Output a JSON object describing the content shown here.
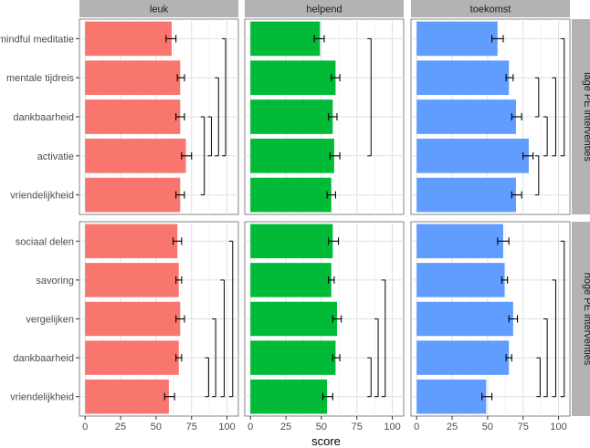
{
  "chart_data": {
    "type": "bar",
    "orientation": "horizontal",
    "xlabel": "score",
    "xlim": [
      -4,
      108
    ],
    "xticks": [
      0,
      25,
      50,
      75,
      100
    ],
    "grid": true,
    "columns": [
      "leuk",
      "helpend",
      "toekomst"
    ],
    "colors": {
      "leuk": "#f8766d",
      "helpend": "#00ba38",
      "toekomst": "#619cff"
    },
    "rows": [
      {
        "label": "lage PE interventies",
        "categories": [
          "mindful meditatie",
          "mentale tijdreis",
          "dankbaarheid",
          "activatie",
          "vriendelijkheid"
        ],
        "panels": [
          {
            "name": "leuk",
            "values": [
              61,
              67,
              67,
              71,
              67
            ],
            "err_low": [
              57,
              65,
              64,
              68,
              64
            ],
            "err_high": [
              64,
              70,
              70,
              75,
              70
            ],
            "brackets": [
              {
                "from": 0,
                "to": 3,
                "x": 99
              },
              {
                "from": 1,
                "to": 3,
                "x": 94
              },
              {
                "from": 2,
                "to": 3,
                "x": 89
              },
              {
                "from": 2,
                "to": 4,
                "x": 84
              }
            ]
          },
          {
            "name": "helpend",
            "values": [
              49,
              60,
              58,
              59,
              57
            ],
            "err_low": [
              45,
              57,
              55,
              56,
              54
            ],
            "err_high": [
              52,
              63,
              61,
              63,
              60
            ],
            "brackets": [
              {
                "from": 0,
                "to": 3,
                "x": 85
              }
            ]
          },
          {
            "name": "toekomst",
            "values": [
              57,
              65,
              70,
              79,
              70
            ],
            "err_low": [
              53,
              63,
              67,
              75,
              67
            ],
            "err_high": [
              61,
              68,
              74,
              82,
              74
            ],
            "brackets": [
              {
                "from": 0,
                "to": 3,
                "x": 104
              },
              {
                "from": 1,
                "to": 3,
                "x": 98
              },
              {
                "from": 2,
                "to": 3,
                "x": 92
              },
              {
                "from": 1,
                "to": 2,
                "x": 86
              },
              {
                "from": 3,
                "to": 4,
                "x": 86
              }
            ]
          }
        ]
      },
      {
        "label": "hoge PE interventies",
        "categories": [
          "sociaal delen",
          "savoring",
          "vergelijken",
          "dankbaarheid",
          "vriendelijkheid"
        ],
        "panels": [
          {
            "name": "leuk",
            "values": [
              65,
              66,
              67,
              66,
              59
            ],
            "err_low": [
              62,
              64,
              64,
              64,
              56
            ],
            "err_high": [
              68,
              68,
              70,
              68,
              63
            ],
            "brackets": [
              {
                "from": 0,
                "to": 4,
                "x": 104
              },
              {
                "from": 1,
                "to": 4,
                "x": 98
              },
              {
                "from": 2,
                "to": 4,
                "x": 92
              },
              {
                "from": 3,
                "to": 4,
                "x": 87
              }
            ]
          },
          {
            "name": "helpend",
            "values": [
              58,
              57,
              61,
              60,
              54
            ],
            "err_low": [
              55,
              55,
              58,
              58,
              51
            ],
            "err_high": [
              62,
              59,
              64,
              63,
              58
            ],
            "brackets": [
              {
                "from": 1,
                "to": 4,
                "x": 95
              },
              {
                "from": 2,
                "to": 4,
                "x": 90
              },
              {
                "from": 3,
                "to": 4,
                "x": 85
              }
            ]
          },
          {
            "name": "toekomst",
            "values": [
              61,
              62,
              68,
              65,
              49
            ],
            "err_low": [
              57,
              60,
              65,
              63,
              46
            ],
            "err_high": [
              65,
              64,
              71,
              67,
              53
            ],
            "brackets": [
              {
                "from": 0,
                "to": 4,
                "x": 104
              },
              {
                "from": 1,
                "to": 4,
                "x": 98
              },
              {
                "from": 2,
                "to": 4,
                "x": 92
              },
              {
                "from": 3,
                "to": 4,
                "x": 87
              }
            ]
          }
        ]
      }
    ]
  }
}
